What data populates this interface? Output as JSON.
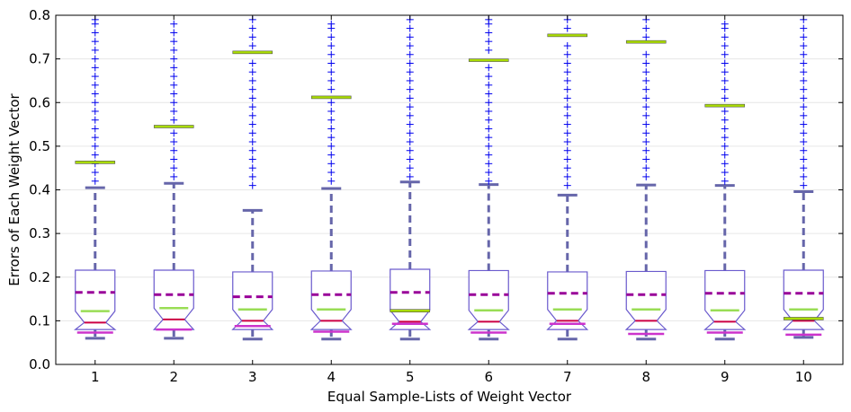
{
  "chart_data": {
    "type": "box",
    "xlabel": "Equal Sample-Lists of Weight Vector",
    "ylabel": "Errors of Each Weight Vector",
    "ylim": [
      0.0,
      0.8
    ],
    "yticks": [
      "0.0",
      "0.1",
      "0.2",
      "0.3",
      "0.4",
      "0.5",
      "0.6",
      "0.7",
      "0.8"
    ],
    "categories": [
      "1",
      "2",
      "3",
      "4",
      "5",
      "6",
      "7",
      "8",
      "9",
      "10"
    ],
    "grid": "horizontal",
    "colors": {
      "box": "#6a5acd",
      "whisker": "#6666aa",
      "median": "#cc0044",
      "mean": "#990099",
      "notch_line": "#99dd55",
      "flier": "#0000ee",
      "extra_line": "#aadd00",
      "low_marker": "#cc33cc"
    },
    "boxes": [
      {
        "label": "1",
        "whislo": 0.06,
        "q1": 0.08,
        "median": 0.096,
        "q3": 0.216,
        "whishi": 0.405,
        "mean": 0.165,
        "low_marker": 0.073,
        "extra_line": 0.463,
        "fliers": [
          0.42,
          0.44,
          0.46,
          0.48,
          0.5,
          0.52,
          0.54,
          0.56,
          0.58,
          0.6,
          0.62,
          0.64,
          0.66,
          0.68,
          0.7,
          0.72,
          0.74,
          0.76,
          0.78,
          0.79
        ]
      },
      {
        "label": "2",
        "whislo": 0.06,
        "q1": 0.08,
        "median": 0.103,
        "q3": 0.216,
        "whishi": 0.415,
        "mean": 0.16,
        "low_marker": 0.08,
        "extra_line": 0.545,
        "fliers": [
          0.43,
          0.45,
          0.47,
          0.49,
          0.51,
          0.53,
          0.56,
          0.58,
          0.6,
          0.62,
          0.64,
          0.66,
          0.68,
          0.7,
          0.72,
          0.74,
          0.76,
          0.78
        ]
      },
      {
        "label": "3",
        "whislo": 0.058,
        "q1": 0.08,
        "median": 0.1,
        "q3": 0.212,
        "whishi": 0.353,
        "mean": 0.155,
        "low_marker": 0.088,
        "extra_line": 0.715,
        "fliers": [
          0.41,
          0.43,
          0.45,
          0.47,
          0.49,
          0.51,
          0.53,
          0.55,
          0.57,
          0.59,
          0.61,
          0.63,
          0.65,
          0.67,
          0.69,
          0.73,
          0.75,
          0.77,
          0.79
        ]
      },
      {
        "label": "4",
        "whislo": 0.058,
        "q1": 0.08,
        "median": 0.1,
        "q3": 0.214,
        "whishi": 0.403,
        "mean": 0.16,
        "low_marker": 0.075,
        "extra_line": 0.612,
        "fliers": [
          0.42,
          0.44,
          0.46,
          0.48,
          0.5,
          0.52,
          0.54,
          0.56,
          0.58,
          0.6,
          0.63,
          0.65,
          0.67,
          0.69,
          0.71,
          0.73,
          0.75,
          0.77,
          0.78
        ]
      },
      {
        "label": "5",
        "whislo": 0.058,
        "q1": 0.08,
        "median": 0.098,
        "q3": 0.218,
        "whishi": 0.418,
        "mean": 0.165,
        "low_marker": 0.093,
        "extra_line": 0.123,
        "fliers": [
          0.43,
          0.45,
          0.47,
          0.49,
          0.51,
          0.53,
          0.55,
          0.57,
          0.59,
          0.61,
          0.63,
          0.65,
          0.67,
          0.69,
          0.71,
          0.73,
          0.75,
          0.77,
          0.79
        ]
      },
      {
        "label": "6",
        "whislo": 0.058,
        "q1": 0.08,
        "median": 0.098,
        "q3": 0.215,
        "whishi": 0.412,
        "mean": 0.16,
        "low_marker": 0.073,
        "extra_line": 0.697,
        "fliers": [
          0.42,
          0.44,
          0.46,
          0.48,
          0.5,
          0.52,
          0.54,
          0.56,
          0.58,
          0.6,
          0.62,
          0.64,
          0.66,
          0.68,
          0.72,
          0.74,
          0.76,
          0.78,
          0.79
        ]
      },
      {
        "label": "7",
        "whislo": 0.058,
        "q1": 0.08,
        "median": 0.1,
        "q3": 0.212,
        "whishi": 0.388,
        "mean": 0.163,
        "low_marker": 0.093,
        "extra_line": 0.754,
        "fliers": [
          0.41,
          0.43,
          0.45,
          0.47,
          0.49,
          0.51,
          0.53,
          0.55,
          0.57,
          0.59,
          0.61,
          0.63,
          0.65,
          0.67,
          0.69,
          0.71,
          0.73,
          0.77,
          0.79
        ]
      },
      {
        "label": "8",
        "whislo": 0.058,
        "q1": 0.08,
        "median": 0.1,
        "q3": 0.213,
        "whishi": 0.411,
        "mean": 0.16,
        "low_marker": 0.07,
        "extra_line": 0.739,
        "fliers": [
          0.43,
          0.45,
          0.47,
          0.49,
          0.51,
          0.53,
          0.55,
          0.57,
          0.59,
          0.61,
          0.63,
          0.65,
          0.67,
          0.69,
          0.71,
          0.75,
          0.77,
          0.79
        ]
      },
      {
        "label": "9",
        "whislo": 0.058,
        "q1": 0.08,
        "median": 0.098,
        "q3": 0.215,
        "whishi": 0.41,
        "mean": 0.163,
        "low_marker": 0.073,
        "extra_line": 0.593,
        "fliers": [
          0.42,
          0.44,
          0.46,
          0.48,
          0.5,
          0.52,
          0.54,
          0.56,
          0.58,
          0.61,
          0.63,
          0.65,
          0.67,
          0.69,
          0.71,
          0.73,
          0.75,
          0.77,
          0.78
        ]
      },
      {
        "label": "10",
        "whislo": 0.062,
        "q1": 0.08,
        "median": 0.1,
        "q3": 0.216,
        "whishi": 0.396,
        "mean": 0.163,
        "low_marker": 0.068,
        "extra_line": 0.105,
        "fliers": [
          0.41,
          0.43,
          0.45,
          0.47,
          0.49,
          0.51,
          0.53,
          0.55,
          0.57,
          0.59,
          0.61,
          0.63,
          0.65,
          0.67,
          0.69,
          0.71,
          0.73,
          0.75,
          0.77,
          0.79
        ]
      }
    ]
  }
}
